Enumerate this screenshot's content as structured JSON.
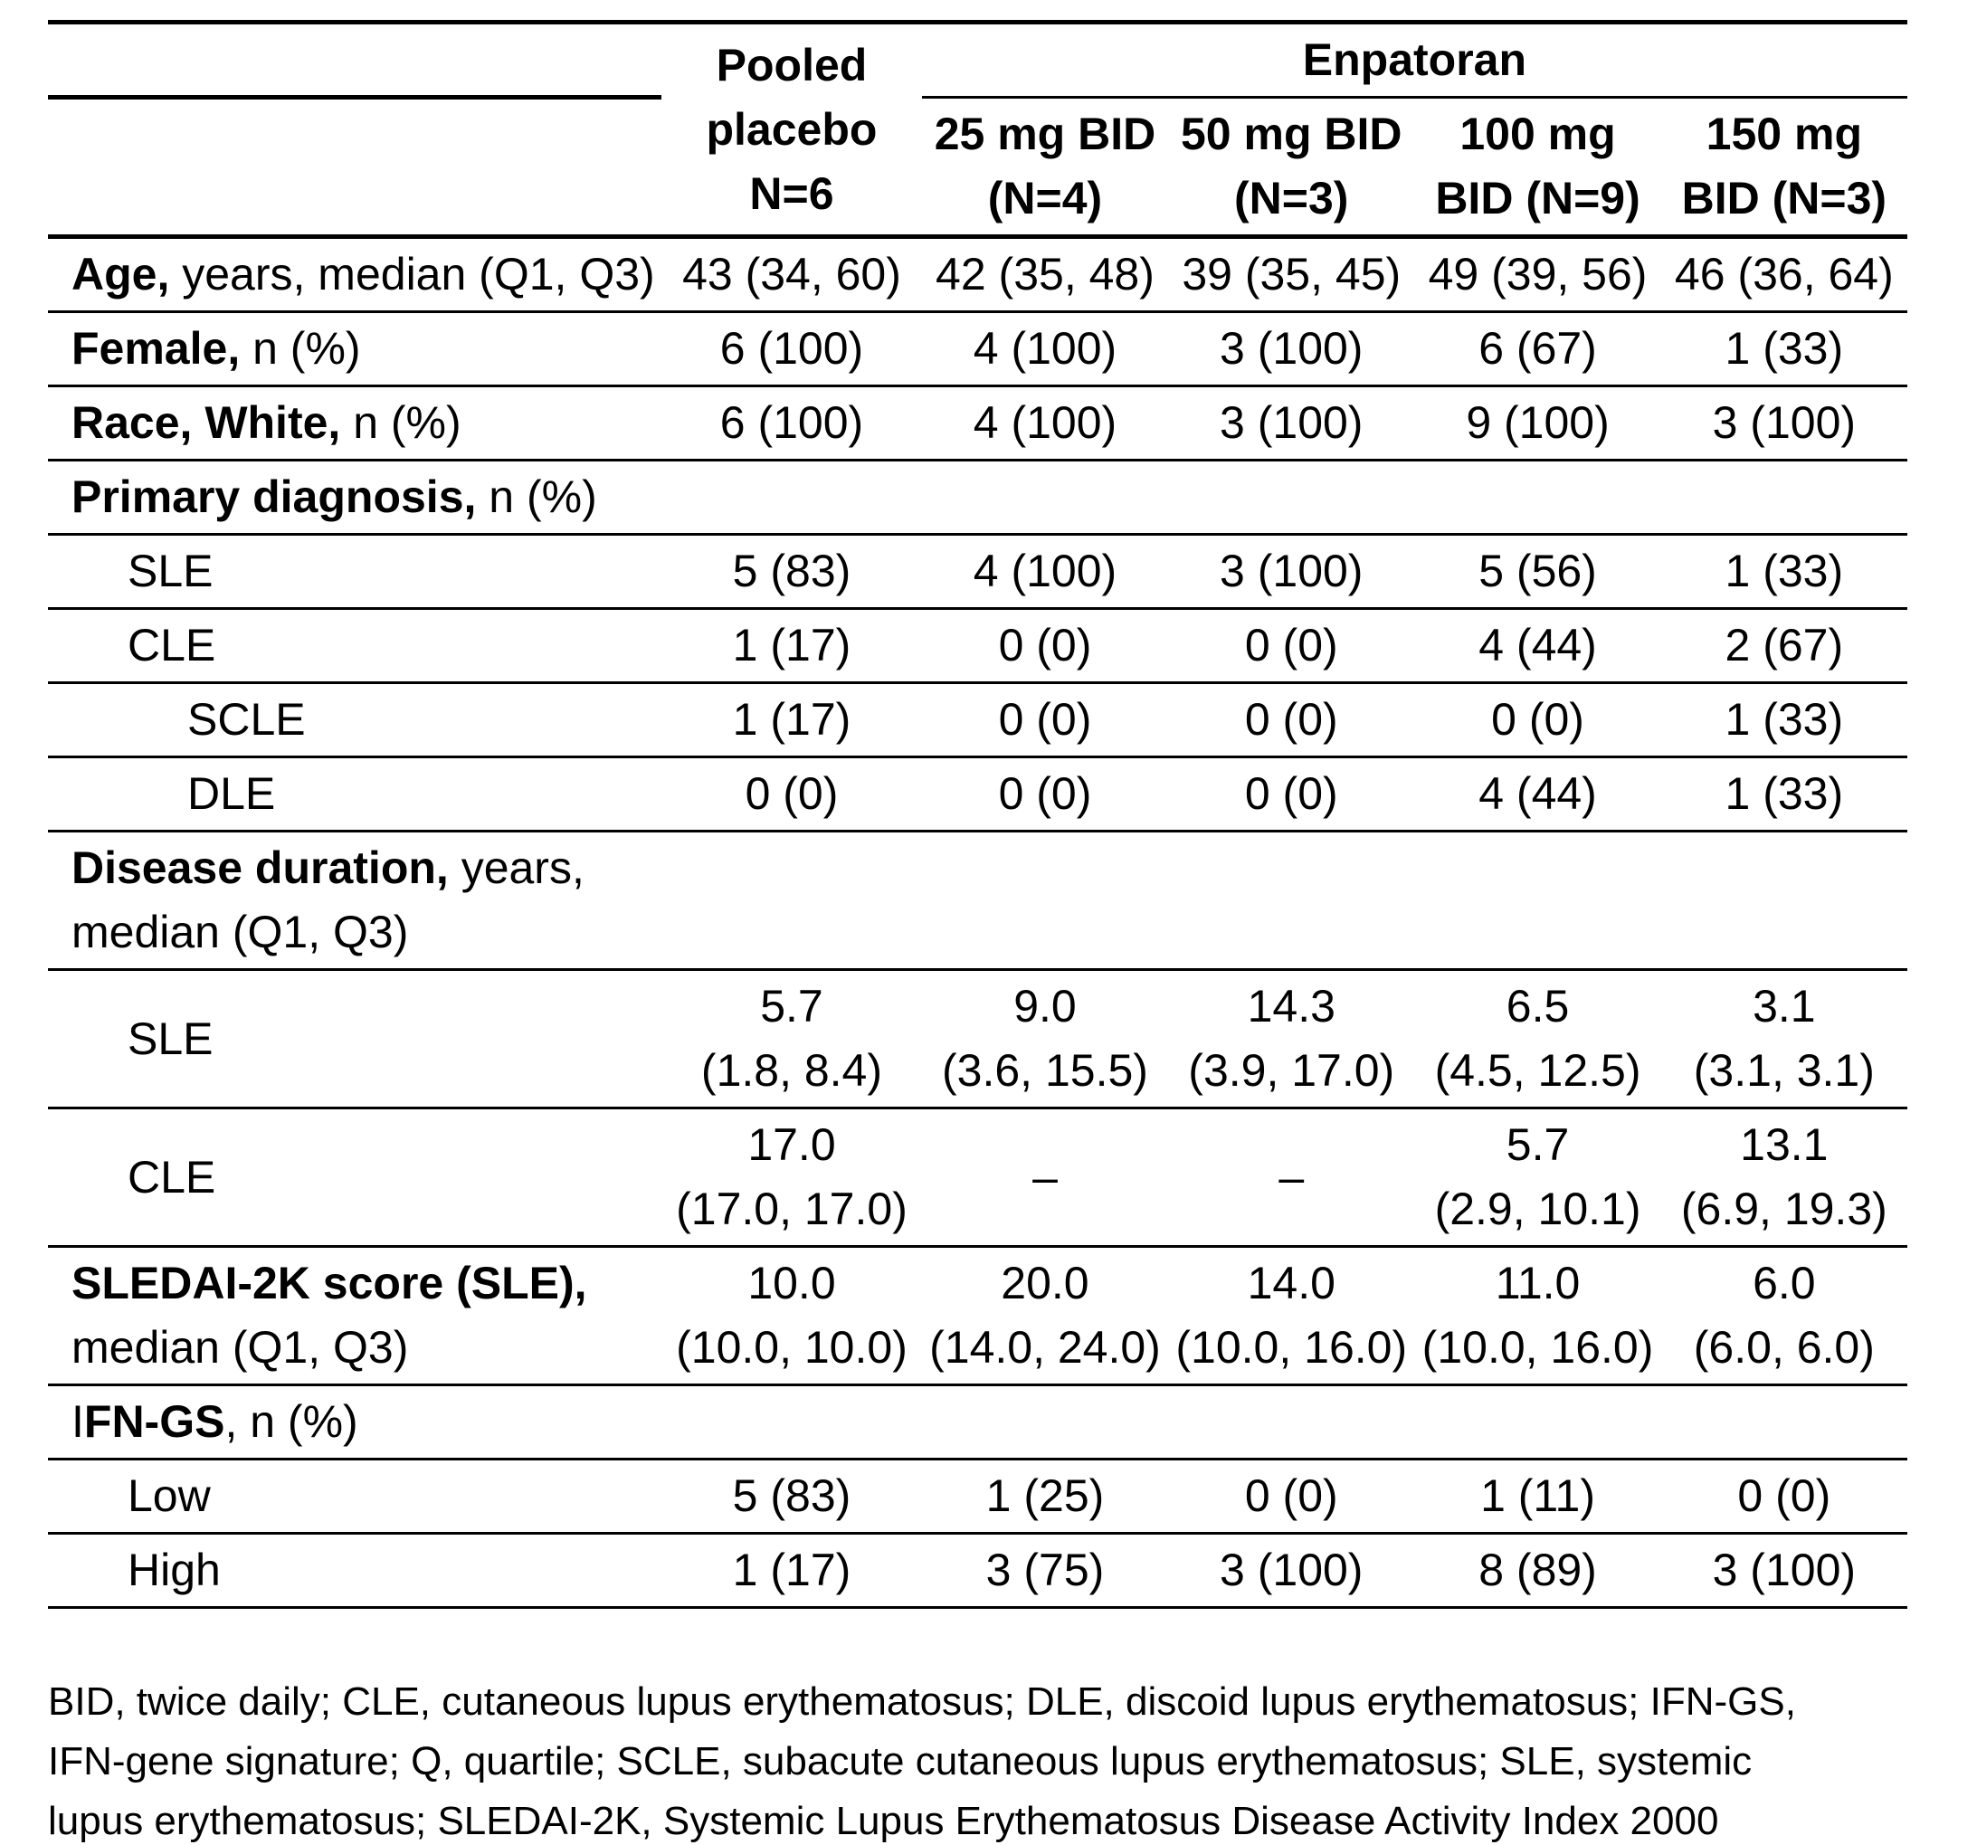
{
  "colors": {
    "background": "#ffffff",
    "text": "#000000",
    "rule": "#000000"
  },
  "table": {
    "header": {
      "placebo": "Pooled\nplacebo\nN=6",
      "group": "Enpatoran",
      "doses": [
        "25 mg BID\n(N=4)",
        "50 mg BID\n(N=3)",
        "100 mg\nBID (N=9)",
        "150 mg\nBID (N=3)"
      ]
    },
    "rows": [
      {
        "label_bold": "Age,",
        "label_rest": " years, median (Q1, Q3)",
        "indent": 0,
        "cells": [
          "43 (34, 60)",
          "42 (35, 48)",
          "39 (35, 45)",
          "49 (39, 56)",
          "46 (36, 64)"
        ]
      },
      {
        "label_bold": "Female,",
        "label_rest": " n (%)",
        "indent": 0,
        "cells": [
          "6 (100)",
          "4 (100)",
          "3 (100)",
          "6 (67)",
          "1 (33)"
        ]
      },
      {
        "label_bold": "Race, White,",
        "label_rest": " n (%)",
        "indent": 0,
        "cells": [
          "6 (100)",
          "4 (100)",
          "3 (100)",
          "9 (100)",
          "3 (100)"
        ]
      },
      {
        "label_bold": "Primary diagnosis,",
        "label_rest": " n (%)",
        "indent": 0,
        "cells": [
          "",
          "",
          "",
          "",
          ""
        ]
      },
      {
        "label_rest": "SLE",
        "indent": 1,
        "cells": [
          "5 (83)",
          "4 (100)",
          "3 (100)",
          "5 (56)",
          "1 (33)"
        ]
      },
      {
        "label_rest": "CLE",
        "indent": 1,
        "cells": [
          "1 (17)",
          "0 (0)",
          "0 (0)",
          "4 (44)",
          "2 (67)"
        ]
      },
      {
        "label_rest": "SCLE",
        "indent": 2,
        "cells": [
          "1 (17)",
          "0 (0)",
          "0 (0)",
          "0 (0)",
          "1 (33)"
        ]
      },
      {
        "label_rest": "DLE",
        "indent": 2,
        "cells": [
          "0 (0)",
          "0 (0)",
          "0 (0)",
          "4 (44)",
          "1 (33)"
        ]
      },
      {
        "label_bold": "Disease duration,",
        "label_rest": " years,\nmedian (Q1, Q3)",
        "indent": 0,
        "cells": [
          "",
          "",
          "",
          "",
          ""
        ]
      },
      {
        "label_rest": "SLE",
        "indent": 1,
        "cells": [
          "5.7\n(1.8, 8.4)",
          "9.0\n(3.6, 15.5)",
          "14.3\n(3.9, 17.0)",
          "6.5\n(4.5, 12.5)",
          "3.1\n(3.1, 3.1)"
        ]
      },
      {
        "label_rest": "CLE",
        "indent": 1,
        "cells": [
          "17.0\n(17.0, 17.0)",
          "–",
          "–",
          "5.7\n(2.9, 10.1)",
          "13.1\n(6.9, 19.3)"
        ]
      },
      {
        "label_bold": "SLEDAI-2K score (SLE),",
        "label_rest": "\nmedian (Q1, Q3)",
        "indent": 0,
        "cells": [
          "10.0\n(10.0, 10.0)",
          "20.0\n(14.0, 24.0)",
          "14.0\n(10.0, 16.0)",
          "11.0\n(10.0, 16.0)",
          "6.0\n(6.0, 6.0)"
        ]
      },
      {
        "label_pre": "I",
        "label_bold": "FN-GS",
        "label_rest": ", n (%)",
        "indent": 0,
        "cells": [
          "",
          "",
          "",
          "",
          ""
        ]
      },
      {
        "label_rest": "Low",
        "indent": 1,
        "cells": [
          "5 (83)",
          "1 (25)",
          "0 (0)",
          "1 (11)",
          "0 (0)"
        ]
      },
      {
        "label_rest": "High",
        "indent": 1,
        "cells": [
          "1 (17)",
          "3 (75)",
          "3 (100)",
          "8 (89)",
          "3 (100)"
        ]
      }
    ]
  },
  "footnote": "BID, twice daily; CLE, cutaneous lupus erythematosus; DLE, discoid lupus erythematosus; IFN-GS,\nIFN-gene signature; Q, quartile; SCLE, subacute cutaneous lupus erythematosus; SLE, systemic\nlupus erythematosus; SLEDAI-2K, Systemic Lupus Erythematosus Disease Activity Index 2000"
}
